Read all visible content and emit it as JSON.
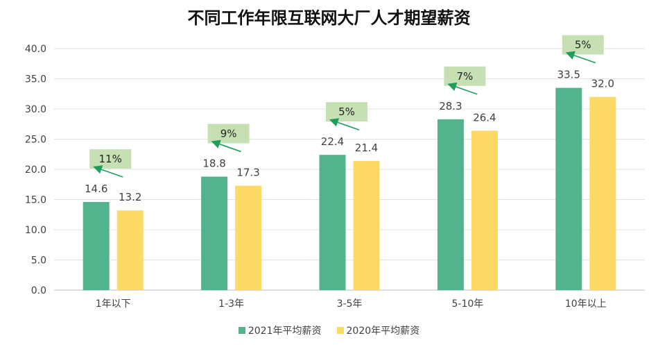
{
  "chart_data": {
    "type": "bar",
    "title": "不同工作年限互联网大厂人才期望薪资",
    "categories": [
      "1年以下",
      "1-3年",
      "3-5年",
      "5-10年",
      "10年以上"
    ],
    "series": [
      {
        "name": "2021年平均薪资",
        "values": [
          14.6,
          18.8,
          22.4,
          28.3,
          33.5
        ],
        "color": "#52B38C"
      },
      {
        "name": "2020年平均薪资",
        "values": [
          13.2,
          17.3,
          21.4,
          26.4,
          32.0
        ],
        "color": "#FDD966"
      }
    ],
    "value_labels": [
      [
        "14.6",
        "18.8",
        "22.4",
        "28.3",
        "33.5"
      ],
      [
        "13.2",
        "17.3",
        "21.4",
        "26.4",
        "32.0"
      ]
    ],
    "growth_labels": [
      "11%",
      "9%",
      "5%",
      "7%",
      "5%"
    ],
    "growth_label_color": "#C6E0B4",
    "arrow_color": "#1E9E5A",
    "ylim": [
      0,
      40
    ],
    "yticks": [
      "0.0",
      "5.0",
      "10.0",
      "15.0",
      "20.0",
      "25.0",
      "30.0",
      "35.0",
      "40.0"
    ],
    "ytick_values": [
      0,
      5,
      10,
      15,
      20,
      25,
      30,
      35,
      40
    ],
    "grid": true,
    "legend_position": "bottom",
    "xlabel": "",
    "ylabel": ""
  }
}
